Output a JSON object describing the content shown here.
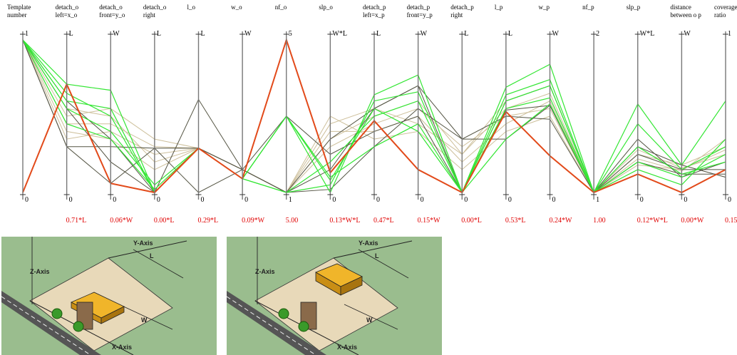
{
  "chart_data": {
    "type": "parallel-coordinates",
    "axes": [
      {
        "id": "template",
        "header": [
          "Template",
          "number"
        ],
        "top": "1",
        "bottom": "0",
        "value": ""
      },
      {
        "id": "detach_o_left",
        "header": [
          "detach_o",
          "left=x_o"
        ],
        "top": "L",
        "bottom": "0",
        "value": "0.71*L"
      },
      {
        "id": "detach_o_front",
        "header": [
          "detach_o",
          "front=y_o"
        ],
        "top": "W",
        "bottom": "0",
        "value": "0.06*W"
      },
      {
        "id": "detach_o_right",
        "header": [
          "detach_o",
          "right"
        ],
        "top": "L",
        "bottom": "0",
        "value": "0.00*L"
      },
      {
        "id": "l_o",
        "header": [
          "l_o"
        ],
        "top": "L",
        "bottom": "0",
        "value": "0.29*L"
      },
      {
        "id": "w_o",
        "header": [
          "w_o"
        ],
        "top": "W",
        "bottom": "0",
        "value": "0.09*W"
      },
      {
        "id": "nf_o",
        "header": [
          "nf_o"
        ],
        "top": "5",
        "bottom": "1",
        "value": "5.00"
      },
      {
        "id": "slp_o",
        "header": [
          "slp_o"
        ],
        "top": "W*L",
        "bottom": "0",
        "value": "0.13*W*L"
      },
      {
        "id": "detach_p_left",
        "header": [
          "detach_p",
          "left=x_p"
        ],
        "top": "L",
        "bottom": "0",
        "value": "0.47*L"
      },
      {
        "id": "detach_p_front",
        "header": [
          "detach_p",
          "front=y_p"
        ],
        "top": "W",
        "bottom": "0",
        "value": "0.15*W"
      },
      {
        "id": "detach_p_right",
        "header": [
          "detach_p",
          "right"
        ],
        "top": "L",
        "bottom": "0",
        "value": "0.00*L"
      },
      {
        "id": "l_p",
        "header": [
          "l_p"
        ],
        "top": "L",
        "bottom": "0",
        "value": "0.53*L"
      },
      {
        "id": "w_p",
        "header": [
          "w_p"
        ],
        "top": "W",
        "bottom": "0",
        "value": "0.24*W"
      },
      {
        "id": "nf_p",
        "header": [
          "nf_p"
        ],
        "top": "2",
        "bottom": "1",
        "value": "1.00"
      },
      {
        "id": "slp_p",
        "header": [
          "slp_p"
        ],
        "top": "W*L",
        "bottom": "0",
        "value": "0.12*W*L"
      },
      {
        "id": "distance",
        "header": [
          "distance",
          "between o p"
        ],
        "top": "W",
        "bottom": "0",
        "value": "0.00*W"
      },
      {
        "id": "coverage",
        "header": [
          "coverage",
          "ratio"
        ],
        "top": "1",
        "bottom": "0",
        "value": "0.15"
      }
    ],
    "highlighted": [
      0,
      0.71,
      0.06,
      0.0,
      0.29,
      0.09,
      1.0,
      0.13,
      0.47,
      0.15,
      0.0,
      0.53,
      0.24,
      0.0,
      0.12,
      0.0,
      0.15
    ],
    "green_series": [
      [
        1,
        0.71,
        0.67,
        0.0,
        0.29,
        0.09,
        0.5,
        0.0,
        0.64,
        0.77,
        0.0,
        0.69,
        0.84,
        0.0,
        0.58,
        0.18,
        0.6
      ],
      [
        1,
        0.6,
        0.55,
        0.0,
        0.29,
        0.09,
        0.0,
        0.05,
        0.6,
        0.66,
        0.0,
        0.64,
        0.74,
        0.0,
        0.45,
        0.15,
        0.3
      ],
      [
        1,
        0.55,
        0.4,
        0.05,
        0.29,
        0.09,
        0.5,
        0.1,
        0.3,
        0.45,
        0.0,
        0.35,
        0.58,
        0.0,
        0.3,
        0.12,
        0.2
      ],
      [
        1,
        0.45,
        0.35,
        0.02,
        0.29,
        0.09,
        0.0,
        0.2,
        0.5,
        0.6,
        0.0,
        0.6,
        0.7,
        0.0,
        0.2,
        0.1,
        0.25
      ],
      [
        1,
        0.65,
        0.5,
        0.0,
        0.29,
        0.09,
        0.5,
        0.08,
        0.55,
        0.4,
        0.0,
        0.55,
        0.62,
        0.0,
        0.15,
        0.05,
        0.35
      ]
    ],
    "dark_series": [
      [
        1,
        0.3,
        0.3,
        0.29,
        0.0,
        0.15,
        0.0,
        0.35,
        0.55,
        0.7,
        0.35,
        0.5,
        0.48,
        0.0,
        0.3,
        0.18,
        0.1
      ],
      [
        1,
        0.6,
        0.35,
        0.0,
        0.61,
        0.15,
        0.5,
        0.25,
        0.4,
        0.5,
        0.0,
        0.54,
        0.57,
        0.0,
        0.25,
        0.15,
        0.15
      ],
      [
        1,
        0.3,
        0.06,
        0.29,
        0.29,
        0.15,
        0.0,
        0.02,
        0.3,
        0.55,
        0.35,
        0.35,
        0.57,
        0.0,
        0.2,
        0.12,
        0.12
      ],
      [
        1,
        0.55,
        0.2,
        0.0,
        0.29,
        0.15,
        0.0,
        0.15,
        0.55,
        0.7,
        0.0,
        0.6,
        0.7,
        0.0,
        0.35,
        0.1,
        0.2
      ]
    ],
    "tan_series": [
      [
        1,
        0.5,
        0.55,
        0.35,
        0.29,
        0.15,
        0.0,
        0.45,
        0.55,
        0.45,
        0.25,
        0.6,
        0.7,
        0.0,
        0.25,
        0.18,
        0.3
      ],
      [
        1,
        0.45,
        0.45,
        0.3,
        0.29,
        0.15,
        0.0,
        0.4,
        0.4,
        0.5,
        0.2,
        0.45,
        0.6,
        0.0,
        0.28,
        0.16,
        0.25
      ],
      [
        1,
        0.35,
        0.4,
        0.25,
        0.29,
        0.15,
        0.0,
        0.3,
        0.45,
        0.55,
        0.3,
        0.5,
        0.55,
        0.0,
        0.22,
        0.14,
        0.35
      ],
      [
        1,
        0.55,
        0.5,
        0.2,
        0.29,
        0.15,
        0.0,
        0.5,
        0.35,
        0.4,
        0.15,
        0.4,
        0.5,
        0.0,
        0.2,
        0.12,
        0.2
      ],
      [
        1,
        0.4,
        0.35,
        0.15,
        0.29,
        0.15,
        0.0,
        0.35,
        0.5,
        0.6,
        0.25,
        0.55,
        0.65,
        0.0,
        0.18,
        0.15,
        0.28
      ]
    ],
    "colors": {
      "highlight": "#e24a1a",
      "green": "#33e633",
      "dark": "#555544",
      "tan": "#cdbf9a",
      "axis": "#777777",
      "value_text": "#e00000"
    }
  },
  "scenes": [
    {
      "id": "scene-1",
      "labels": {
        "y_axis": "Y-Axis",
        "z_axis": "Z-Axis",
        "x_axis": "X-Axis",
        "l": "L",
        "w": "W"
      }
    },
    {
      "id": "scene-2",
      "labels": {
        "y_axis": "Y-Axis",
        "z_axis": "Z-Axis",
        "x_axis": "X-Axis",
        "l": "L",
        "w": "W"
      }
    }
  ],
  "scene_colors": {
    "ground": "#9abd8e",
    "lot": "#e8d9b9",
    "building": "#f0b52a",
    "tower": "#8a6a4a",
    "road": "#555555",
    "tree": "#3a9a2a"
  }
}
